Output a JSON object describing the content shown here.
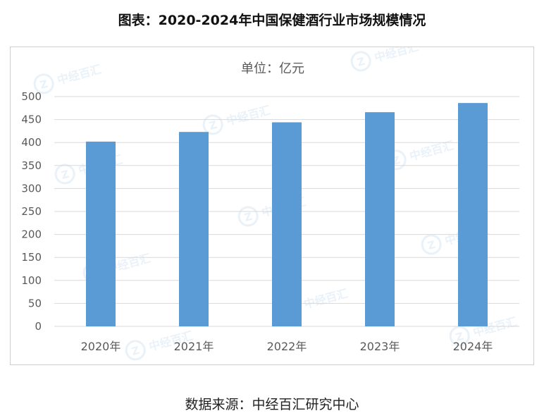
{
  "title": "图表：2020-2024年中国保健酒行业市场规模情况",
  "source": "数据来源：中经百汇研究中心",
  "watermark_text": "中经百汇",
  "colors": {
    "bar": "#5b9bd5",
    "grid": "#d9d9d9",
    "axis_text": "#595959"
  },
  "chart_data": {
    "type": "bar",
    "unit_label": "单位：亿元",
    "categories": [
      "2020年",
      "2021年",
      "2022年",
      "2023年",
      "2024年"
    ],
    "series": [
      {
        "values": [
          402,
          423,
          444,
          466,
          486
        ]
      }
    ],
    "ylim": [
      0,
      500
    ],
    "yticks": [
      0,
      50,
      100,
      150,
      200,
      250,
      300,
      350,
      400,
      450,
      500
    ],
    "grid": true,
    "legend": "none"
  }
}
